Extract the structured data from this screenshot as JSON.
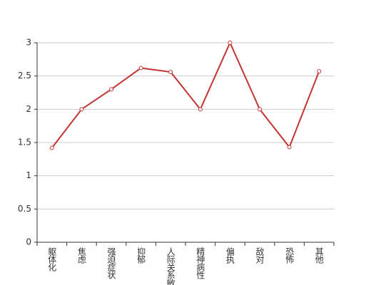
{
  "chart_data": {
    "type": "line",
    "categories": [
      "躯体化",
      "焦虑",
      "强迫症状",
      "抑郁",
      "人际关系敏感",
      "精神病性",
      "偏执",
      "敌对",
      "恐怖",
      "其他"
    ],
    "values": [
      1.42,
      2.0,
      2.3,
      2.62,
      2.56,
      2.0,
      3.0,
      2.0,
      1.43,
      2.57
    ],
    "color": "#c23531",
    "ylim": [
      0,
      3
    ],
    "yticks": [
      0,
      0.5,
      1,
      1.5,
      2,
      2.5,
      3
    ],
    "grid": true
  }
}
